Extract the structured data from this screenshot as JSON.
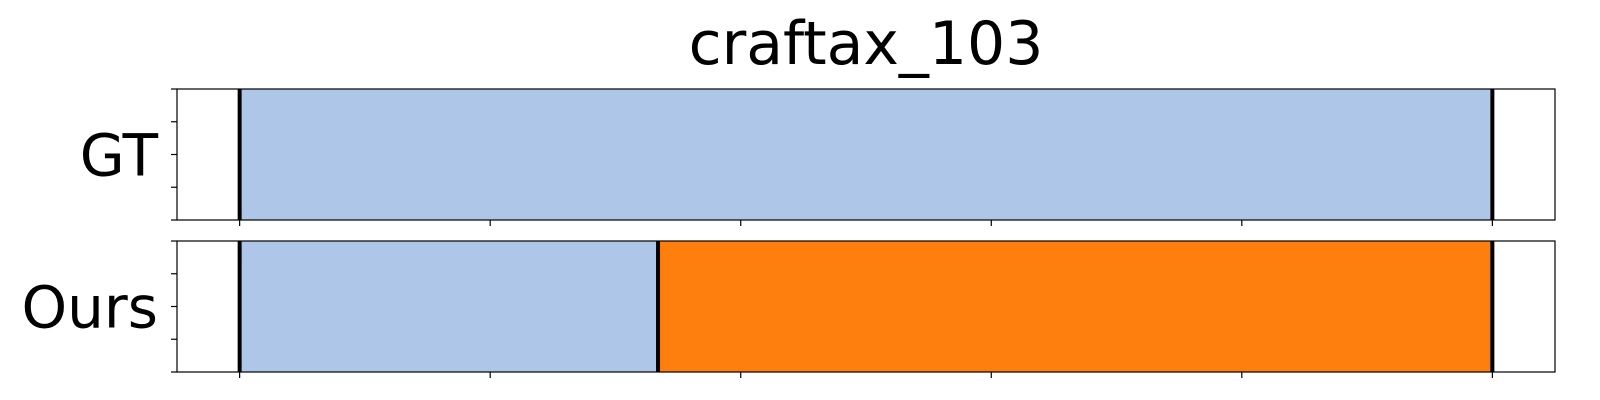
{
  "chart_data": {
    "type": "segmentation-timeline",
    "title": "craftax_103",
    "x_range": [
      0,
      110
    ],
    "rows": [
      {
        "label": "GT",
        "segments": [
          {
            "start": 5,
            "end": 105,
            "color": "#aec7e8"
          }
        ],
        "boundaries": [
          5,
          105
        ]
      },
      {
        "label": "Ours",
        "segments": [
          {
            "start": 5,
            "end": 38.4,
            "color": "#aec7e8"
          },
          {
            "start": 38.4,
            "end": 105,
            "color": "#ff7f0e"
          }
        ],
        "boundaries": [
          5,
          38.4,
          105
        ]
      }
    ],
    "x_ticks": [
      5,
      25,
      45,
      65,
      85,
      105
    ],
    "x_tick_labels_visible": false,
    "y_tick_labels_visible": false,
    "grid": false
  }
}
